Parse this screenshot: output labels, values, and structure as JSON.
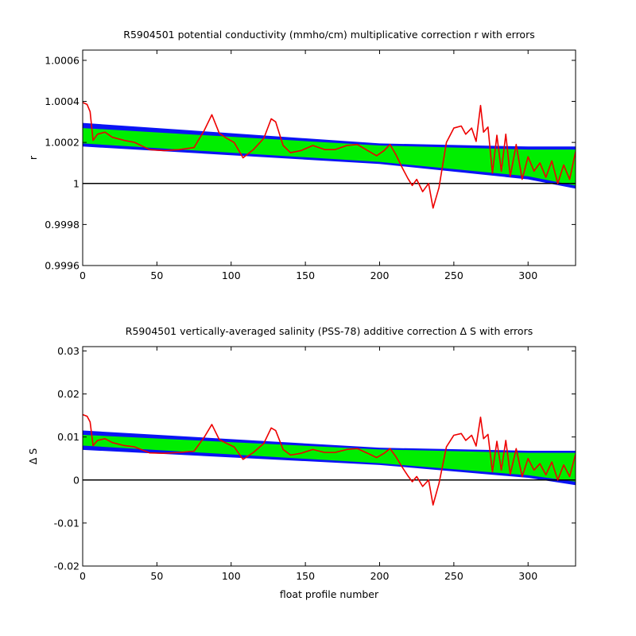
{
  "chart_data": [
    {
      "type": "area",
      "title": "R5904501 potential conductivity (mmho/cm) multiplicative correction r with errors",
      "xlabel": "",
      "ylabel": "r",
      "xlim": [
        0,
        332
      ],
      "ylim": [
        0.9996,
        1.00065
      ],
      "xticks": [
        0,
        50,
        100,
        150,
        200,
        250,
        300
      ],
      "xtick_labels": [
        "0",
        "50",
        "100",
        "150",
        "200",
        "250",
        "300"
      ],
      "yticks": [
        0.9996,
        0.9998,
        1.0,
        1.0002,
        1.0004,
        1.0006
      ],
      "ytick_labels": [
        "0.9996",
        "0.9998",
        "1",
        "1.0002",
        "1.0004",
        "1.0006"
      ],
      "reference_line": 1.0,
      "colors": {
        "outer_error": "#0a14f5",
        "inner_error": "#00ee00",
        "series": "#ee0000",
        "reference": "#000000"
      },
      "outer_band": {
        "x": [
          0,
          200,
          300,
          332
        ],
        "upper": [
          1.000295,
          1.000195,
          1.00018,
          1.00018
        ],
        "lower": [
          1.00018,
          1.000095,
          1.00002,
          0.999975
        ]
      },
      "inner_band": {
        "x": [
          0,
          200,
          300,
          332
        ],
        "upper": [
          1.00027,
          1.000185,
          1.000165,
          1.000165
        ],
        "lower": [
          1.000195,
          1.000105,
          1.000035,
          0.99999
        ]
      },
      "series": [
        {
          "x": [
            0,
            3,
            5,
            7,
            10,
            15,
            20,
            28,
            35,
            45,
            55,
            65,
            75,
            82,
            87,
            92,
            97,
            102,
            108,
            115,
            122,
            127,
            130,
            135,
            140,
            147,
            155,
            163,
            170,
            178,
            185,
            192,
            198,
            203,
            207,
            211,
            215,
            219,
            222,
            225,
            229,
            233,
            236,
            240,
            245,
            250,
            255,
            258,
            262,
            265,
            268,
            270,
            273,
            276,
            279,
            282,
            285,
            288,
            292,
            296,
            300,
            304,
            308,
            312,
            316,
            320,
            324,
            328,
            332
          ],
          "values": [
            1.000395,
            1.000385,
            1.00035,
            1.00021,
            1.00024,
            1.00025,
            1.000225,
            1.00021,
            1.0002,
            1.000165,
            1.00016,
            1.000165,
            1.000175,
            1.00026,
            1.000335,
            1.000245,
            1.00022,
            1.0002,
            1.000125,
            1.000165,
            1.00022,
            1.000315,
            1.0003,
            1.000185,
            1.00015,
            1.00016,
            1.000185,
            1.000165,
            1.000165,
            1.000185,
            1.00019,
            1.00016,
            1.000135,
            1.00016,
            1.00019,
            1.00014,
            1.00008,
            1.000025,
            0.99999,
            1.00002,
            0.99996,
            1.0,
            0.99988,
            0.99998,
            1.0002,
            1.00027,
            1.00028,
            1.00024,
            1.00027,
            1.000205,
            1.00038,
            1.00025,
            1.000275,
            1.00005,
            1.000235,
            1.00006,
            1.00024,
            1.000035,
            1.00019,
            1.00002,
            1.00013,
            1.00006,
            1.0001,
            1.00003,
            1.00011,
            1.0,
            1.00009,
            1.00002,
            1.000155
          ]
        }
      ]
    },
    {
      "type": "area",
      "title": "R5904501 vertically-averaged salinity (PSS-78) additive correction Δ S with errors",
      "xlabel": "float profile number",
      "ylabel": "Δ S",
      "xlim": [
        0,
        332
      ],
      "ylim": [
        -0.02,
        0.031
      ],
      "xticks": [
        0,
        50,
        100,
        150,
        200,
        250,
        300
      ],
      "xtick_labels": [
        "0",
        "50",
        "100",
        "150",
        "200",
        "250",
        "300"
      ],
      "yticks": [
        -0.02,
        -0.01,
        0.0,
        0.01,
        0.02,
        0.03
      ],
      "ytick_labels": [
        "-0.02",
        "-0.01",
        "0",
        "0.01",
        "0.02",
        "0.03"
      ],
      "reference_line": 0.0,
      "colors": {
        "outer_error": "#0a14f5",
        "inner_error": "#00ee00",
        "series": "#ee0000",
        "reference": "#000000"
      },
      "outer_band": {
        "x": [
          0,
          200,
          300,
          332
        ],
        "upper": [
          0.0115,
          0.0075,
          0.0068,
          0.0068
        ],
        "lower": [
          0.007,
          0.0035,
          0.0005,
          -0.0012
        ]
      },
      "inner_band": {
        "x": [
          0,
          200,
          300,
          332
        ],
        "upper": [
          0.0105,
          0.0071,
          0.0063,
          0.0063
        ],
        "lower": [
          0.008,
          0.0039,
          0.0011,
          -0.0004
        ]
      },
      "series": [
        {
          "x": [
            0,
            3,
            5,
            7,
            10,
            15,
            20,
            28,
            35,
            45,
            55,
            65,
            75,
            82,
            87,
            92,
            97,
            102,
            108,
            115,
            122,
            127,
            130,
            135,
            140,
            147,
            155,
            163,
            170,
            178,
            185,
            192,
            198,
            203,
            207,
            211,
            215,
            219,
            222,
            225,
            229,
            233,
            236,
            240,
            245,
            250,
            255,
            258,
            262,
            265,
            268,
            270,
            273,
            276,
            279,
            282,
            285,
            288,
            292,
            296,
            300,
            304,
            308,
            312,
            316,
            320,
            324,
            328,
            332
          ],
          "values": [
            0.0152,
            0.0148,
            0.0135,
            0.008,
            0.0092,
            0.0096,
            0.0087,
            0.008,
            0.0077,
            0.0063,
            0.0062,
            0.0064,
            0.0067,
            0.01,
            0.0129,
            0.0094,
            0.0085,
            0.0077,
            0.0048,
            0.0064,
            0.0085,
            0.0121,
            0.0115,
            0.0071,
            0.0058,
            0.0062,
            0.0071,
            0.0064,
            0.0064,
            0.0071,
            0.0073,
            0.0062,
            0.0052,
            0.0062,
            0.0073,
            0.0054,
            0.0031,
            0.001,
            -0.0004,
            0.0008,
            -0.0015,
            0.0,
            -0.0058,
            -0.0008,
            0.0077,
            0.0104,
            0.0108,
            0.0092,
            0.0104,
            0.0079,
            0.0146,
            0.0096,
            0.0106,
            0.0019,
            0.009,
            0.0023,
            0.0092,
            0.0013,
            0.0073,
            0.0008,
            0.005,
            0.0023,
            0.0038,
            0.0012,
            0.0042,
            0.0,
            0.0035,
            0.0008,
            0.006
          ]
        }
      ]
    }
  ]
}
